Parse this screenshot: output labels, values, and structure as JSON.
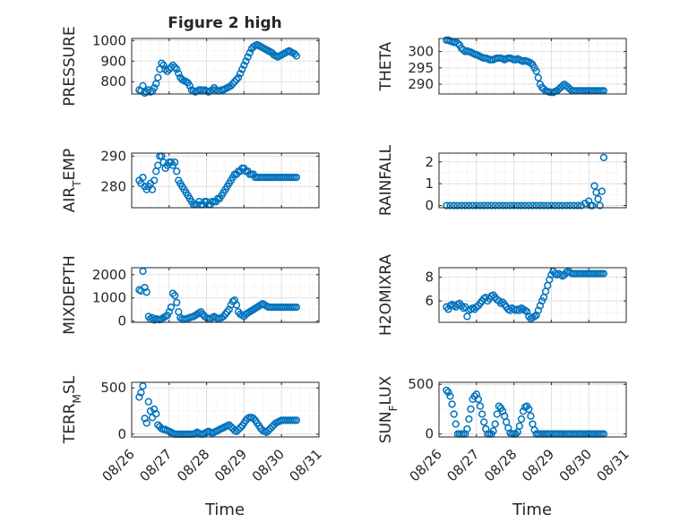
{
  "figure": {
    "title": "Figure 2 high",
    "xlabel": "Time",
    "x_ticks": [
      "08/26",
      "08/27",
      "08/28",
      "08/29",
      "08/30",
      "08/31"
    ]
  },
  "style": {
    "marker_color": "#0072BD",
    "axis_color": "#262626",
    "grid_color": "#dfdfdf"
  },
  "chart_data": [
    {
      "type": "scatter",
      "ylabel": "PRESSURE",
      "ylim": [
        740,
        1010
      ],
      "yticks": [
        800,
        900,
        1000
      ],
      "grid": true,
      "x_range_days": [
        0,
        5
      ],
      "x": [
        0.2,
        0.25,
        0.3,
        0.35,
        0.4,
        0.45,
        0.5,
        0.55,
        0.6,
        0.65,
        0.7,
        0.75,
        0.8,
        0.85,
        0.9,
        0.95,
        1.0,
        1.05,
        1.1,
        1.15,
        1.2,
        1.25,
        1.3,
        1.35,
        1.4,
        1.45,
        1.5,
        1.55,
        1.6,
        1.65,
        1.7,
        1.75,
        1.8,
        1.85,
        1.9,
        1.95,
        2.0,
        2.05,
        2.1,
        2.15,
        2.2,
        2.25,
        2.3,
        2.35,
        2.4,
        2.45,
        2.5,
        2.55,
        2.6,
        2.65,
        2.7,
        2.75,
        2.8,
        2.85,
        2.9,
        2.95,
        3.0,
        3.05,
        3.1,
        3.15,
        3.2,
        3.25,
        3.3,
        3.35,
        3.4,
        3.45,
        3.5,
        3.55,
        3.6,
        3.65,
        3.7,
        3.75,
        3.8,
        3.85,
        3.9,
        3.95,
        4.0,
        4.05,
        4.1,
        4.15,
        4.2,
        4.25,
        4.3,
        4.35,
        4.4
      ],
      "y": [
        760,
        755,
        780,
        745,
        750,
        760,
        750,
        755,
        770,
        790,
        820,
        860,
        890,
        880,
        860,
        850,
        860,
        870,
        880,
        870,
        860,
        840,
        820,
        810,
        805,
        800,
        795,
        780,
        760,
        755,
        750,
        755,
        760,
        760,
        755,
        760,
        755,
        750,
        755,
        760,
        770,
        760,
        755,
        755,
        760,
        760,
        765,
        770,
        775,
        780,
        790,
        800,
        810,
        820,
        840,
        860,
        880,
        900,
        920,
        940,
        960,
        970,
        975,
        980,
        975,
        970,
        965,
        960,
        955,
        950,
        945,
        940,
        930,
        925,
        920,
        925,
        930,
        935,
        940,
        945,
        950,
        945,
        940,
        935,
        925
      ]
    },
    {
      "type": "scatter",
      "ylabel": "THETA",
      "ylim": [
        287,
        304
      ],
      "yticks": [
        290,
        295,
        300
      ],
      "grid": true,
      "x_range_days": [
        0,
        5
      ],
      "x": [
        0.2,
        0.25,
        0.3,
        0.35,
        0.4,
        0.45,
        0.5,
        0.55,
        0.6,
        0.65,
        0.7,
        0.75,
        0.8,
        0.85,
        0.9,
        0.95,
        1.0,
        1.05,
        1.1,
        1.15,
        1.2,
        1.25,
        1.3,
        1.35,
        1.4,
        1.45,
        1.5,
        1.55,
        1.6,
        1.65,
        1.7,
        1.75,
        1.8,
        1.85,
        1.9,
        1.95,
        2.0,
        2.05,
        2.1,
        2.15,
        2.2,
        2.25,
        2.3,
        2.35,
        2.4,
        2.45,
        2.5,
        2.55,
        2.6,
        2.65,
        2.7,
        2.75,
        2.8,
        2.85,
        2.9,
        2.95,
        3.0,
        3.05,
        3.1,
        3.15,
        3.2,
        3.25,
        3.3,
        3.35,
        3.4,
        3.45,
        3.5,
        3.55,
        3.6,
        3.65,
        3.7,
        3.75,
        3.8,
        3.85,
        3.9,
        3.95,
        4.0,
        4.05,
        4.1,
        4.15,
        4.2,
        4.25,
        4.3,
        4.35,
        4.4
      ],
      "y": [
        303.5,
        303.5,
        303.2,
        303,
        302.8,
        303,
        302.5,
        302,
        301,
        300.5,
        300,
        300.2,
        300,
        299.8,
        299.5,
        299.2,
        299,
        298.8,
        298.5,
        298.2,
        298,
        298,
        297.8,
        297.5,
        297.5,
        297.5,
        297.8,
        298,
        298,
        298,
        297.8,
        297.5,
        297.8,
        298,
        298,
        297.8,
        297.5,
        297.5,
        297.8,
        297.5,
        297.2,
        297,
        297.2,
        297,
        296.8,
        296.5,
        296,
        295,
        294,
        292,
        290,
        289,
        288.5,
        288,
        287.8,
        287.6,
        287.5,
        287.5,
        287.8,
        288,
        288.5,
        289,
        289.5,
        290,
        289.5,
        289,
        288.5,
        288,
        288,
        288,
        288,
        288,
        288,
        288,
        288,
        288,
        288,
        288,
        288,
        288,
        288,
        288,
        288,
        288,
        288
      ]
    },
    {
      "type": "scatter",
      "ylabel": "AIR_TEMP",
      "ylim": [
        273,
        291
      ],
      "yticks": [
        280,
        290
      ],
      "grid": true,
      "x_range_days": [
        0,
        5
      ],
      "x": [
        0.2,
        0.25,
        0.3,
        0.35,
        0.4,
        0.45,
        0.5,
        0.55,
        0.6,
        0.65,
        0.7,
        0.75,
        0.8,
        0.85,
        0.9,
        0.95,
        1.0,
        1.05,
        1.1,
        1.15,
        1.2,
        1.25,
        1.3,
        1.35,
        1.4,
        1.45,
        1.5,
        1.55,
        1.6,
        1.65,
        1.7,
        1.75,
        1.8,
        1.85,
        1.9,
        1.95,
        2.0,
        2.05,
        2.1,
        2.15,
        2.2,
        2.25,
        2.3,
        2.35,
        2.4,
        2.45,
        2.5,
        2.55,
        2.6,
        2.65,
        2.7,
        2.75,
        2.8,
        2.85,
        2.9,
        2.95,
        3.0,
        3.05,
        3.1,
        3.15,
        3.2,
        3.25,
        3.3,
        3.35,
        3.4,
        3.45,
        3.5,
        3.55,
        3.6,
        3.65,
        3.7,
        3.75,
        3.8,
        3.85,
        3.9,
        3.95,
        4.0,
        4.05,
        4.1,
        4.15,
        4.2,
        4.25,
        4.3,
        4.35,
        4.4
      ],
      "y": [
        282,
        281,
        283,
        280,
        279,
        280,
        281,
        279,
        282,
        285,
        287,
        290,
        290,
        288,
        286,
        287,
        288,
        288,
        287,
        288,
        285,
        282,
        281,
        280,
        279,
        278,
        277,
        276,
        275,
        274,
        274,
        274,
        275,
        274,
        274,
        275,
        275,
        274,
        274,
        275,
        275,
        275,
        276,
        276,
        277,
        278,
        279,
        280,
        281,
        282,
        283,
        284,
        284,
        285,
        285,
        286,
        286,
        285,
        285,
        284,
        284,
        284,
        283,
        283,
        283,
        283,
        283,
        283,
        283,
        283,
        283,
        283,
        283,
        283,
        283,
        283,
        283,
        283,
        283,
        283,
        283,
        283,
        283,
        283,
        283
      ]
    },
    {
      "type": "scatter",
      "ylabel": "RAINFALL",
      "ylim": [
        -0.1,
        2.4
      ],
      "yticks": [
        0,
        1,
        2
      ],
      "grid": true,
      "x_range_days": [
        0,
        5
      ],
      "x": [
        0.2,
        0.3,
        0.4,
        0.5,
        0.6,
        0.7,
        0.8,
        0.9,
        1.0,
        1.1,
        1.2,
        1.3,
        1.4,
        1.5,
        1.6,
        1.7,
        1.8,
        1.9,
        2.0,
        2.1,
        2.2,
        2.3,
        2.4,
        2.5,
        2.6,
        2.7,
        2.8,
        2.9,
        3.0,
        3.1,
        3.2,
        3.3,
        3.4,
        3.5,
        3.6,
        3.7,
        3.8,
        3.9,
        4.0,
        4.05,
        4.1,
        4.15,
        4.2,
        4.25,
        4.3,
        4.35,
        4.4
      ],
      "y": [
        0,
        0,
        0,
        0,
        0,
        0,
        0,
        0,
        0,
        0,
        0,
        0,
        0,
        0,
        0,
        0,
        0,
        0,
        0,
        0,
        0,
        0,
        0,
        0,
        0,
        0,
        0,
        0,
        0,
        0,
        0,
        0,
        0,
        0,
        0,
        0,
        0,
        0.1,
        0.2,
        0,
        0,
        0.9,
        0.6,
        0.3,
        0,
        0.65,
        2.2
      ]
    },
    {
      "type": "scatter",
      "ylabel": "MIXDEPTH",
      "ylim": [
        -50,
        2300
      ],
      "yticks": [
        0,
        1000,
        2000
      ],
      "grid": true,
      "x_range_days": [
        0,
        5
      ],
      "x": [
        0.2,
        0.25,
        0.3,
        0.35,
        0.4,
        0.45,
        0.5,
        0.55,
        0.6,
        0.65,
        0.7,
        0.75,
        0.8,
        0.85,
        0.9,
        0.95,
        1.0,
        1.05,
        1.1,
        1.15,
        1.2,
        1.25,
        1.3,
        1.35,
        1.4,
        1.45,
        1.5,
        1.55,
        1.6,
        1.65,
        1.7,
        1.75,
        1.8,
        1.85,
        1.9,
        1.95,
        2.0,
        2.05,
        2.1,
        2.15,
        2.2,
        2.25,
        2.3,
        2.35,
        2.4,
        2.45,
        2.5,
        2.55,
        2.6,
        2.65,
        2.7,
        2.75,
        2.8,
        2.85,
        2.9,
        2.95,
        3.0,
        3.05,
        3.1,
        3.15,
        3.2,
        3.25,
        3.3,
        3.35,
        3.4,
        3.45,
        3.5,
        3.55,
        3.6,
        3.65,
        3.7,
        3.75,
        3.8,
        3.85,
        3.9,
        3.95,
        4.0,
        4.05,
        4.1,
        4.15,
        4.2,
        4.25,
        4.3,
        4.35,
        4.4
      ],
      "y": [
        1350,
        1300,
        2150,
        1450,
        1250,
        200,
        100,
        150,
        50,
        100,
        80,
        60,
        100,
        150,
        200,
        250,
        400,
        600,
        1200,
        1100,
        800,
        400,
        150,
        100,
        80,
        100,
        120,
        150,
        180,
        200,
        250,
        300,
        350,
        400,
        300,
        200,
        150,
        100,
        100,
        150,
        200,
        150,
        100,
        120,
        150,
        200,
        300,
        400,
        500,
        700,
        850,
        900,
        700,
        400,
        300,
        250,
        200,
        300,
        350,
        400,
        450,
        500,
        550,
        600,
        650,
        700,
        750,
        700,
        650,
        600,
        600,
        600,
        600,
        600,
        600,
        600,
        600,
        600,
        600,
        600,
        600,
        600,
        600,
        600,
        600
      ]
    },
    {
      "type": "scatter",
      "ylabel": "H2OMIXRA",
      "ylim": [
        4.2,
        8.8
      ],
      "yticks": [
        6,
        8
      ],
      "grid": true,
      "x_range_days": [
        0,
        5
      ],
      "x": [
        0.2,
        0.25,
        0.3,
        0.35,
        0.4,
        0.45,
        0.5,
        0.55,
        0.6,
        0.65,
        0.7,
        0.75,
        0.8,
        0.85,
        0.9,
        0.95,
        1.0,
        1.05,
        1.1,
        1.15,
        1.2,
        1.25,
        1.3,
        1.35,
        1.4,
        1.45,
        1.5,
        1.55,
        1.6,
        1.65,
        1.7,
        1.75,
        1.8,
        1.85,
        1.9,
        1.95,
        2.0,
        2.05,
        2.1,
        2.15,
        2.2,
        2.25,
        2.3,
        2.35,
        2.4,
        2.45,
        2.5,
        2.55,
        2.6,
        2.65,
        2.7,
        2.75,
        2.8,
        2.85,
        2.9,
        2.95,
        3.0,
        3.05,
        3.1,
        3.15,
        3.2,
        3.25,
        3.3,
        3.35,
        3.4,
        3.45,
        3.5,
        3.55,
        3.6,
        3.65,
        3.7,
        3.75,
        3.8,
        3.85,
        3.9,
        3.95,
        4.0,
        4.05,
        4.1,
        4.15,
        4.2,
        4.25,
        4.3,
        4.35,
        4.4
      ],
      "y": [
        5.5,
        5.3,
        5.6,
        5.7,
        5.6,
        5.5,
        5.7,
        5.8,
        5.6,
        5.4,
        5.5,
        4.7,
        5.2,
        5.3,
        5.4,
        5.3,
        5.5,
        5.6,
        5.8,
        6.0,
        6.2,
        6.3,
        6.0,
        6.2,
        6.4,
        6.5,
        6.3,
        6.1,
        6.0,
        5.8,
        5.9,
        5.7,
        5.5,
        5.3,
        5.2,
        5.4,
        5.3,
        5.2,
        5.3,
        5.2,
        5.4,
        5.3,
        5.2,
        5.1,
        4.7,
        4.5,
        4.6,
        4.7,
        4.8,
        5.2,
        5.6,
        6.0,
        6.3,
        6.8,
        7.3,
        7.8,
        8.2,
        8.5,
        8.3,
        8.2,
        8.3,
        8.2,
        8.1,
        8.2,
        8.4,
        8.5,
        8.4,
        8.3,
        8.3,
        8.3,
        8.3,
        8.3,
        8.3,
        8.3,
        8.3,
        8.3,
        8.3,
        8.3,
        8.3,
        8.3,
        8.3,
        8.3,
        8.3,
        8.3,
        8.3
      ]
    },
    {
      "type": "scatter",
      "ylabel": "TERR_MSL",
      "ylim": [
        -30,
        560
      ],
      "yticks": [
        0,
        500
      ],
      "grid": true,
      "x_range_days": [
        0,
        5
      ],
      "x": [
        0.2,
        0.25,
        0.3,
        0.35,
        0.4,
        0.45,
        0.5,
        0.55,
        0.6,
        0.65,
        0.7,
        0.75,
        0.8,
        0.85,
        0.9,
        0.95,
        1.0,
        1.05,
        1.1,
        1.15,
        1.2,
        1.25,
        1.3,
        1.35,
        1.4,
        1.45,
        1.5,
        1.55,
        1.6,
        1.65,
        1.7,
        1.75,
        1.8,
        1.85,
        1.9,
        1.95,
        2.0,
        2.05,
        2.1,
        2.15,
        2.2,
        2.25,
        2.3,
        2.35,
        2.4,
        2.45,
        2.5,
        2.55,
        2.6,
        2.65,
        2.7,
        2.75,
        2.8,
        2.85,
        2.9,
        2.95,
        3.0,
        3.05,
        3.1,
        3.15,
        3.2,
        3.25,
        3.3,
        3.35,
        3.4,
        3.45,
        3.5,
        3.55,
        3.6,
        3.65,
        3.7,
        3.75,
        3.8,
        3.85,
        3.9,
        3.95,
        4.0,
        4.05,
        4.1,
        4.15,
        4.2,
        4.25,
        4.3,
        4.35,
        4.4
      ],
      "y": [
        400,
        450,
        520,
        170,
        120,
        350,
        250,
        180,
        270,
        220,
        100,
        80,
        60,
        50,
        50,
        40,
        30,
        20,
        10,
        0,
        0,
        0,
        0,
        0,
        0,
        0,
        0,
        0,
        0,
        0,
        10,
        20,
        10,
        0,
        0,
        10,
        20,
        30,
        20,
        10,
        20,
        30,
        40,
        50,
        60,
        70,
        80,
        90,
        100,
        80,
        60,
        40,
        30,
        50,
        70,
        90,
        120,
        150,
        170,
        180,
        180,
        170,
        150,
        120,
        90,
        60,
        40,
        30,
        20,
        40,
        60,
        80,
        100,
        120,
        130,
        140,
        150,
        150,
        150,
        150,
        150,
        150,
        150,
        150,
        150
      ]
    },
    {
      "type": "scatter",
      "ylabel": "SUN_FLUX",
      "ylim": [
        -30,
        520
      ],
      "yticks": [
        0,
        500
      ],
      "grid": true,
      "x_range_days": [
        0,
        5
      ],
      "x": [
        0.2,
        0.25,
        0.3,
        0.35,
        0.4,
        0.45,
        0.5,
        0.55,
        0.6,
        0.65,
        0.7,
        0.75,
        0.8,
        0.85,
        0.9,
        0.95,
        1.0,
        1.05,
        1.1,
        1.15,
        1.2,
        1.25,
        1.3,
        1.35,
        1.4,
        1.45,
        1.5,
        1.55,
        1.6,
        1.65,
        1.7,
        1.75,
        1.8,
        1.85,
        1.9,
        1.95,
        2.0,
        2.05,
        2.1,
        2.15,
        2.2,
        2.25,
        2.3,
        2.35,
        2.4,
        2.45,
        2.5,
        2.55,
        2.6,
        2.65,
        2.7,
        2.75,
        2.8,
        2.85,
        2.9,
        2.95,
        3.0,
        3.05,
        3.1,
        3.15,
        3.2,
        3.25,
        3.3,
        3.35,
        3.4,
        3.45,
        3.5,
        3.55,
        3.6,
        3.65,
        3.7,
        3.75,
        3.8,
        3.85,
        3.9,
        3.95,
        4.0,
        4.05,
        4.1,
        4.15,
        4.2,
        4.25,
        4.3,
        4.35,
        4.4
      ],
      "y": [
        440,
        420,
        380,
        300,
        200,
        100,
        0,
        0,
        0,
        0,
        0,
        50,
        150,
        250,
        350,
        380,
        400,
        350,
        280,
        200,
        120,
        50,
        0,
        0,
        0,
        30,
        100,
        200,
        280,
        260,
        230,
        180,
        120,
        60,
        10,
        0,
        0,
        0,
        20,
        80,
        150,
        230,
        270,
        280,
        250,
        180,
        100,
        40,
        0,
        0,
        0,
        0,
        0,
        0,
        0,
        0,
        0,
        0,
        0,
        0,
        0,
        0,
        0,
        0,
        0,
        0,
        0,
        0,
        0,
        0,
        0,
        0,
        0,
        0,
        0,
        0,
        0,
        0,
        0,
        0,
        0,
        0,
        0,
        0,
        0
      ]
    }
  ]
}
